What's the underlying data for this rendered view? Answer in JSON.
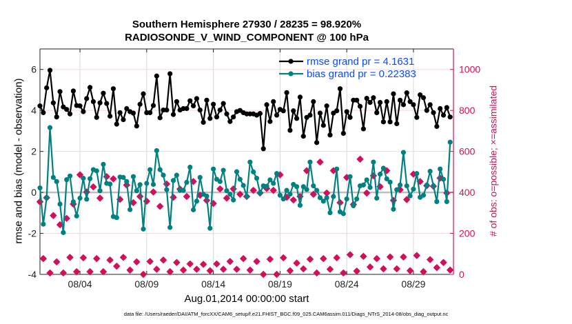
{
  "chart_data": {
    "type": "line",
    "title": [
      "Southern Hemisphere 27930 / 28235 = 98.920%",
      "RADIOSONDE_V_WIND_COMPONENT @ 100 hPa"
    ],
    "xlabel": "Aug.01,2014 00:00:00 start",
    "ylabel_left": "rmse and bias (model - observation)",
    "ylabel_right": "# of obs: o=possible; ×=assimilated",
    "xlim_days": [
      0,
      31
    ],
    "x_step_days": 0.25,
    "x_ticks": [
      {
        "day": 3,
        "label": "08/04"
      },
      {
        "day": 8,
        "label": "08/09"
      },
      {
        "day": 13,
        "label": "08/14"
      },
      {
        "day": 18,
        "label": "08/19"
      },
      {
        "day": 23,
        "label": "08/24"
      },
      {
        "day": 28,
        "label": "08/29"
      }
    ],
    "ylim_left": [
      -4,
      7
    ],
    "yticks_left": [
      -4,
      -2,
      0,
      2,
      4,
      6
    ],
    "ylim_right": [
      0,
      1100
    ],
    "yticks_right": [
      0,
      200,
      400,
      600,
      800,
      1000
    ],
    "grid": true,
    "legend_position": "top-right",
    "series": [
      {
        "name": "rmse grand pr = 4.1631",
        "color": "#000000",
        "axis": "left",
        "values": [
          4.22,
          3.89,
          5.1,
          5.96,
          4.37,
          3.68,
          4.92,
          4.17,
          4.05,
          3.83,
          4.95,
          4.24,
          4.22,
          3.94,
          4.58,
          5.12,
          4.43,
          3.66,
          4.37,
          4.84,
          4.34,
          3.72,
          5.06,
          3.33,
          3.89,
          3.55,
          4.09,
          3.94,
          3.87,
          3.24,
          4.3,
          4.81,
          3.89,
          3.89,
          4.24,
          5.68,
          3.64,
          4.02,
          4.02,
          5.79,
          3.8,
          4.43,
          4.02,
          4.09,
          4.09,
          4.47,
          4.22,
          4.58,
          4.02,
          3.42,
          4.5,
          3.61,
          4.3,
          3.68,
          4.02,
          4.34,
          3.83,
          3.46,
          3.68,
          3.94,
          4.0,
          3.89,
          3.83,
          3.83,
          3.83,
          3.77,
          3.85,
          2.13,
          4.28,
          3.46,
          4.43,
          3.77,
          4.05,
          3.98,
          4.87,
          3.03,
          3.98,
          3.61,
          4.65,
          2.74,
          3.66,
          3.77,
          4.43,
          2.43,
          3.87,
          3.27,
          4.22,
          2.8,
          3.87,
          3.98,
          5.06,
          2.88,
          3.94,
          3.66,
          4.5,
          4.5,
          4.2,
          3.1,
          4.59,
          4.39,
          4.62,
          3.89,
          4.39,
          3.44,
          4.43,
          3.44,
          4.81,
          3.35,
          4.5,
          4.28,
          4.86,
          4.43,
          4.28,
          3.66,
          4.76,
          4.62,
          4.0,
          4.28,
          3.89,
          3.22,
          4.09,
          3.77,
          4.14,
          3.68
        ]
      },
      {
        "name": "bias grand pr = 0.22383",
        "color": "#008080",
        "axis": "left",
        "values": [
          0.22,
          -1.55,
          -0.26,
          3.16,
          0.73,
          0.53,
          -0.57,
          -1.96,
          0.62,
          0.8,
          -0.46,
          -1.15,
          -0.28,
          0.69,
          -0.33,
          0.67,
          1.11,
          1.05,
          0.08,
          1.37,
          0.44,
          0.41,
          -1.18,
          -1.23,
          0.75,
          0.73,
          0.53,
          -0.84,
          0.77,
          0.08,
          0.38,
          -1.79,
          0.44,
          1.11,
          0.39,
          2.04,
          1.11,
          0.84,
          0.13,
          -1.71,
          0.58,
          0.84,
          0.1,
          0.1,
          0.49,
          1.23,
          -0.85,
          -0.43,
          0.73,
          -0.09,
          -0.18,
          -1.75,
          1.14,
          0.64,
          0.53,
          1.08,
          0.08,
          -0.09,
          -0.37,
          1.01,
          0.64,
          0.34,
          -0.2,
          1.48,
          1.0,
          0.69,
          -0.03,
          0.32,
          0.3,
          0.61,
          0.44,
          0.92,
          -0.14,
          -0.32,
          0.1,
          -0.09,
          0.39,
          0.28,
          -0.63,
          0.28,
          0.14,
          1.48,
          0.32,
          0.1,
          -0.26,
          -0.43,
          -0.26,
          -0.99,
          -0.2,
          1.14,
          -0.95,
          -1.04,
          -0.32,
          0.77,
          -0.65,
          -0.32,
          0.32,
          0.36,
          0.61,
          0.24,
          1.48,
          -0.28,
          0.89,
          1.18,
          0.66,
          0.5,
          -0.82,
          0.13,
          0.36,
          1.95,
          0.32,
          -0.17,
          0.16,
          0.92,
          -0.24,
          -0.14,
          0.36,
          1.03,
          0.32,
          -0.45,
          1.14,
          0.64,
          -0.45,
          2.45
        ]
      },
      {
        "name": "obs possible",
        "color": "#d0105a",
        "axis": "right",
        "marker": "o",
        "values": [
          354,
          77,
          374,
          7,
          287,
          61,
          242,
          7,
          273,
          83,
          343,
          13,
          486,
          81,
          402,
          13,
          427,
          77,
          372,
          13,
          477,
          70,
          466,
          40,
          366,
          83,
          436,
          21,
          350,
          61,
          380,
          0,
          357,
          63,
          402,
          25,
          332,
          70,
          441,
          13,
          376,
          58,
          416,
          21,
          380,
          51,
          453,
          25,
          386,
          49,
          361,
          18,
          346,
          51,
          417,
          25,
          372,
          63,
          417,
          25,
          391,
          77,
          380,
          21,
          410,
          63,
          397,
          0,
          419,
          74,
          410,
          0,
          486,
          81,
          376,
          18,
          363,
          55,
          380,
          27,
          506,
          74,
          391,
          7,
          548,
          77,
          397,
          25,
          506,
          81,
          350,
          7,
          473,
          96,
          341,
          16,
          562,
          88,
          397,
          36,
          481,
          77,
          428,
          27,
          506,
          85,
          361,
          27,
          413,
          85,
          365,
          18,
          489,
          92,
          453,
          13,
          433,
          72,
          430,
          33,
          470,
          58,
          397,
          21
        ]
      },
      {
        "name": "obs assimilated",
        "color": "#d0105a",
        "axis": "right",
        "marker": "*",
        "values": [
          354,
          77,
          374,
          7,
          287,
          61,
          242,
          7,
          273,
          83,
          343,
          13,
          486,
          81,
          402,
          13,
          427,
          77,
          372,
          13,
          477,
          70,
          466,
          40,
          366,
          83,
          436,
          21,
          350,
          61,
          380,
          0,
          357,
          63,
          402,
          25,
          332,
          70,
          441,
          13,
          376,
          58,
          416,
          21,
          380,
          51,
          453,
          25,
          386,
          49,
          361,
          18,
          346,
          51,
          417,
          25,
          372,
          63,
          417,
          25,
          391,
          77,
          380,
          21,
          410,
          63,
          397,
          0,
          419,
          74,
          410,
          0,
          486,
          81,
          376,
          18,
          363,
          55,
          380,
          27,
          506,
          74,
          391,
          7,
          548,
          77,
          397,
          25,
          506,
          81,
          350,
          7,
          473,
          96,
          341,
          16,
          562,
          88,
          397,
          36,
          481,
          77,
          428,
          27,
          506,
          85,
          361,
          27,
          413,
          85,
          365,
          18,
          489,
          92,
          453,
          13,
          433,
          72,
          430,
          33,
          470,
          58,
          397,
          21
        ]
      }
    ],
    "footer": "data file: /Users/raeder/DAI/ATM_forcXX/CAM6_setup/f.e21.FHIST_BGC.f09_025.CAM6assim.011/Diags_NTrS_2014-08/obs_diag_output.nc"
  }
}
